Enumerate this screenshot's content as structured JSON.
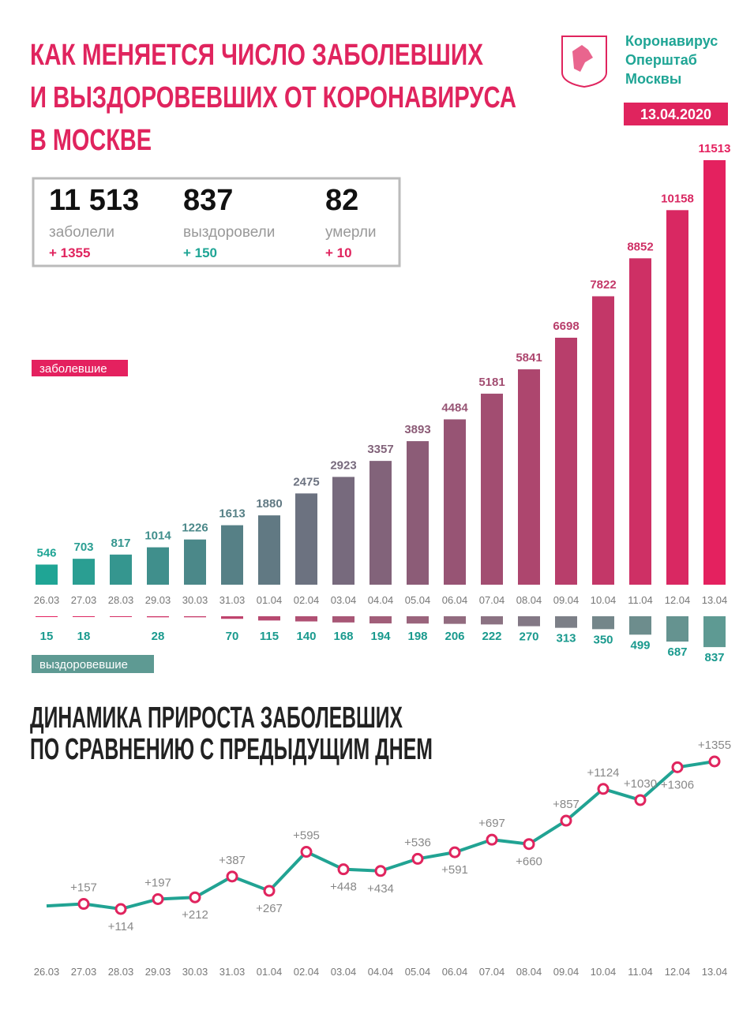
{
  "header": {
    "title": [
      "КАК МЕНЯЕТСЯ ЧИСЛО ЗАБОЛЕВШИХ",
      "И ВЫЗДОРОВЕВШИХ ОТ КОРОНАВИРУСА",
      "В МОСКВЕ"
    ],
    "logo": [
      "Коронавирус",
      "Оперштаб",
      "Москвы"
    ],
    "date": "13.04.2020"
  },
  "stats": [
    {
      "value": "11 513",
      "label": "заболели",
      "change": "+ 1355"
    },
    {
      "value": "837",
      "label": "выздоровели",
      "change": "+ 150"
    },
    {
      "value": "82",
      "label": "умерли",
      "change": "+ 10"
    }
  ],
  "chart_data": [
    {
      "type": "bar",
      "categories": [
        "26.03",
        "27.03",
        "28.03",
        "29.03",
        "30.03",
        "31.03",
        "01.04",
        "02.04",
        "03.04",
        "04.04",
        "05.04",
        "06.04",
        "07.04",
        "08.04",
        "09.04",
        "10.04",
        "11.04",
        "12.04",
        "13.04"
      ],
      "series": [
        {
          "name": "заболевшие",
          "colors": [
            "#1fa595",
            "#e4215f"
          ],
          "values": [
            546,
            703,
            817,
            1014,
            1226,
            1613,
            1880,
            2475,
            2923,
            3357,
            3893,
            4484,
            5181,
            5841,
            6698,
            7822,
            8852,
            10158,
            11513
          ]
        },
        {
          "name": "выздоровевшие",
          "colors": [
            "#e4215f",
            "#5e9a93"
          ],
          "values": [
            15,
            18,
            18,
            28,
            28,
            70,
            115,
            140,
            168,
            194,
            198,
            206,
            222,
            270,
            313,
            350,
            499,
            687,
            837
          ],
          "value_labels": [
            "15",
            "18",
            null,
            "28",
            null,
            "70",
            "115",
            "140",
            "168",
            "194",
            "198",
            "206",
            "222",
            "270",
            "313",
            "350",
            "499",
            "687",
            "837"
          ]
        }
      ]
    },
    {
      "type": "line",
      "title": [
        "ДИНАМИКА ПРИРОСТА ЗАБОЛЕВШИХ",
        "ПО СРАВНЕНИЮ С ПРЕДЫДУЩИМ ДНЕМ"
      ],
      "categories": [
        "26.03",
        "27.03",
        "28.03",
        "29.03",
        "30.03",
        "31.03",
        "01.04",
        "02.04",
        "03.04",
        "04.04",
        "05.04",
        "06.04",
        "07.04",
        "08.04",
        "09.04",
        "10.04",
        "11.04",
        "12.04",
        "13.04"
      ],
      "values": [
        140,
        157,
        114,
        197,
        212,
        387,
        267,
        595,
        448,
        434,
        536,
        591,
        697,
        660,
        857,
        1124,
        1030,
        1306,
        1355
      ],
      "value_labels": [
        null,
        "+157",
        "+114",
        "+197",
        "+212",
        "+387",
        "+267",
        "+595",
        "+448",
        "+434",
        "+536",
        "+591",
        "+697",
        "+660",
        "+857",
        "+1124",
        "+1030",
        "+1306",
        "+1355"
      ],
      "color": "#21a393",
      "marker_color": "#e0245e"
    }
  ]
}
